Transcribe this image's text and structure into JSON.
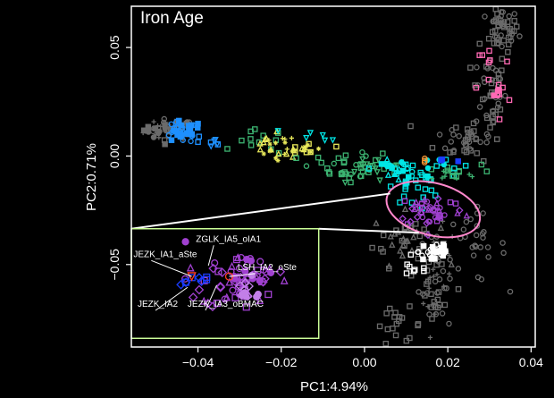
{
  "chart_data": {
    "type": "scatter",
    "title": "Iron Age",
    "xlabel": "PC1:4.94%",
    "ylabel": "PC2:0.71%",
    "xlim": [
      -0.056,
      0.041
    ],
    "ylim": [
      -0.088,
      0.069
    ],
    "xticks": [
      -0.04,
      -0.02,
      0.0,
      0.02,
      0.04
    ],
    "xtick_labels": [
      "−0.04",
      "−0.02",
      "0.00",
      "0.02",
      "0.04"
    ],
    "yticks": [
      -0.05,
      0.0,
      0.05
    ],
    "ytick_labels": [
      "−0.05",
      "0.00",
      "0.05"
    ],
    "grid": false,
    "colors": {
      "background": "#000000",
      "frame": "#ffffff",
      "reference": "#6b6b6b",
      "light_gray": "#bbbbbb",
      "light_blue": "#1e90ff",
      "cyan": "#00e5e5",
      "green": "#3cb371",
      "yellow": "#e8e85a",
      "pink": "#ff69b4",
      "purple": "#a040d0",
      "blue": "#1a3cff",
      "red": "#ff4020",
      "ellipse": "#ff88cc",
      "inset_frame": "#ccff99"
    },
    "ellipse": {
      "cx": 0.0165,
      "cy": -0.0245,
      "rx": 0.0115,
      "ry": 0.012
    },
    "inset": {
      "frame_x": [
        -0.056,
        -0.011
      ],
      "frame_y": [
        -0.084,
        -0.0335
      ],
      "source_x": [
        0.005,
        0.028
      ],
      "source_y": [
        -0.036,
        -0.013
      ]
    },
    "annotations": [
      {
        "label": "ZGLK_IA5_oIA1",
        "x": -0.0405,
        "y": -0.0395,
        "px": -0.0375,
        "py": -0.0505
      },
      {
        "label": "JEZK_IA1_aSte",
        "x": -0.0555,
        "y": -0.0465,
        "px": -0.0415,
        "py": -0.0555
      },
      {
        "label": "LSH_IA2_oSte",
        "x": -0.0305,
        "y": -0.0525,
        "px": -0.0325,
        "py": -0.0555
      },
      {
        "label": "JEZK_IA2",
        "x": -0.0545,
        "y": -0.0695,
        "px": -0.0425,
        "py": -0.0605
      },
      {
        "label": "JEZK_IA3_oBMAC",
        "x": -0.0425,
        "y": -0.0695,
        "px": -0.0355,
        "py": -0.0595
      }
    ]
  }
}
